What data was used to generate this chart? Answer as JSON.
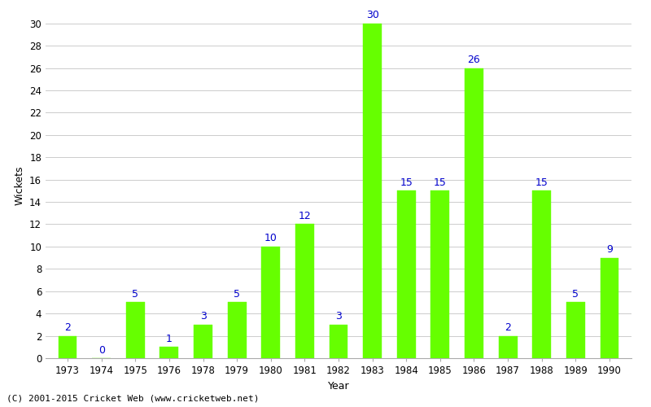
{
  "years": [
    1973,
    1974,
    1975,
    1976,
    1978,
    1979,
    1980,
    1981,
    1982,
    1983,
    1984,
    1985,
    1986,
    1987,
    1988,
    1989,
    1990
  ],
  "wickets": [
    2,
    0,
    5,
    1,
    3,
    5,
    10,
    12,
    3,
    30,
    15,
    15,
    26,
    2,
    15,
    5,
    9
  ],
  "bar_color": "#66ff00",
  "label_color": "#0000cc",
  "xlabel": "Year",
  "ylabel": "Wickets",
  "ylim": [
    0,
    31
  ],
  "yticks": [
    0,
    2,
    4,
    6,
    8,
    10,
    12,
    14,
    16,
    18,
    20,
    22,
    24,
    26,
    28,
    30
  ],
  "bg_color": "#ffffff",
  "grid_color": "#cccccc",
  "footer": "(C) 2001-2015 Cricket Web (www.cricketweb.net)",
  "label_fontsize": 9,
  "tick_fontsize": 8.5,
  "footer_fontsize": 8,
  "bar_width": 0.55
}
